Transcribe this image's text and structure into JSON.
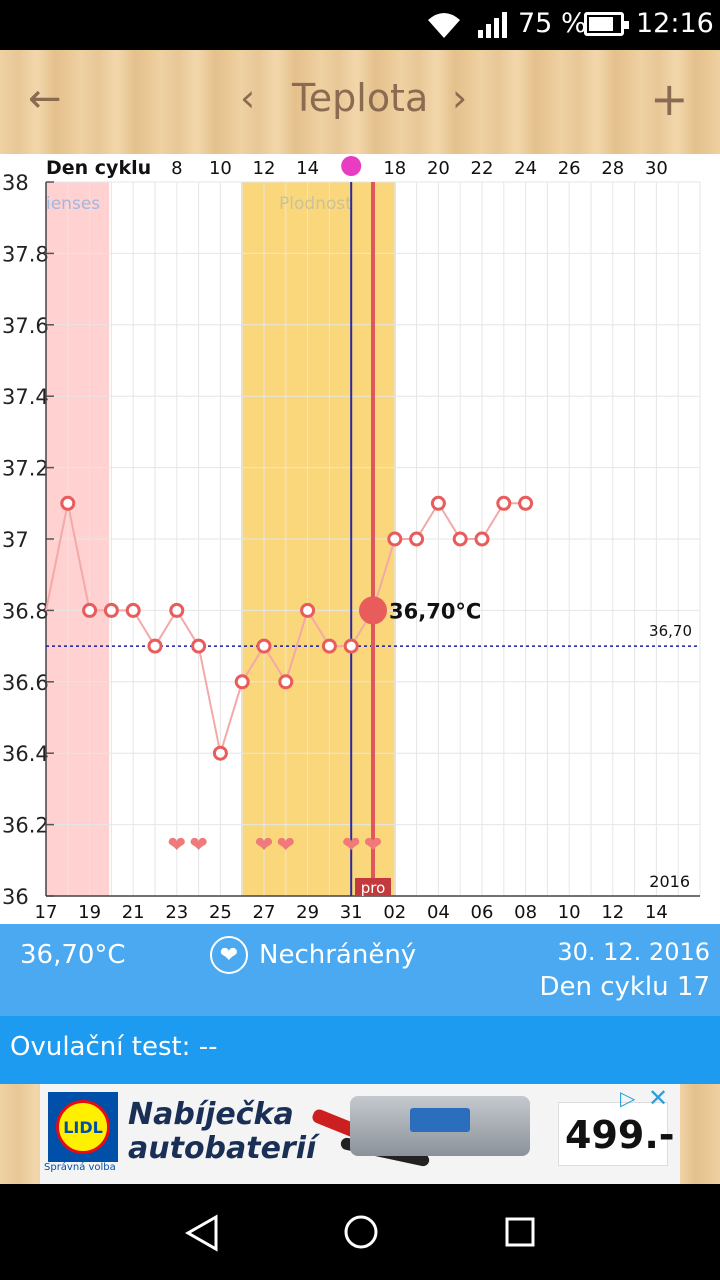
{
  "status_bar": {
    "battery_percent": "75 %",
    "time": "12:16",
    "battery_level": 0.75
  },
  "app_bar": {
    "title": "Teplota",
    "icons": [
      "arrow-back-icon",
      "chevron-left-icon",
      "chevron-right-icon",
      "plus-icon"
    ]
  },
  "chart_data": {
    "type": "line",
    "top_axis_label": "Den cyklu",
    "top_ticks": [
      "8",
      "10",
      "12",
      "14",
      "18",
      "20",
      "22",
      "24",
      "26",
      "28",
      "30"
    ],
    "bottom_ticks": [
      "17",
      "19",
      "21",
      "23",
      "25",
      "27",
      "29",
      "31",
      "02",
      "04",
      "06",
      "08",
      "10",
      "12",
      "14"
    ],
    "ylim": [
      36,
      38
    ],
    "y_ticks": [
      "38",
      "37.8",
      "37.6",
      "37.4",
      "37.2",
      "37",
      "36.8",
      "36.6",
      "36.4",
      "36.2",
      "36"
    ],
    "zone_labels": {
      "menses": "ienses",
      "fertile": "Plodnost"
    },
    "series": [
      {
        "values": [
          36.8,
          37.1,
          36.8,
          36.8,
          36.8,
          36.7,
          36.8,
          36.7,
          36.4,
          36.6,
          36.7,
          36.6,
          36.8,
          36.7,
          36.7,
          36.8,
          37.0,
          37.0,
          37.1,
          37.0,
          37.0,
          37.1,
          37.1
        ]
      }
    ],
    "selected_value_label": "36,70°C",
    "reference_line": {
      "value": 36.7,
      "label": "36,70"
    },
    "year_label": "2016",
    "marker_label": "pro",
    "colors": {
      "menses": "#ffd1d1",
      "fertile": "#fad77a",
      "line": "#f4a9a9",
      "point": "#e85c5c",
      "selected_line": "#e0585b",
      "cover_line": "#2a2aa0"
    }
  },
  "info_panel": {
    "temperature": "36,70°C",
    "status": "Nechráněný",
    "date": "30. 12. 2016",
    "cycle_day": "Den cyklu 17"
  },
  "ovulation": {
    "label": "Ovulační test: --"
  },
  "ad": {
    "brand": "LIDL",
    "slogan": "Správná volba",
    "headline_line1": "Nabíječka",
    "headline_line2": "autobaterií",
    "price": "499.-"
  }
}
